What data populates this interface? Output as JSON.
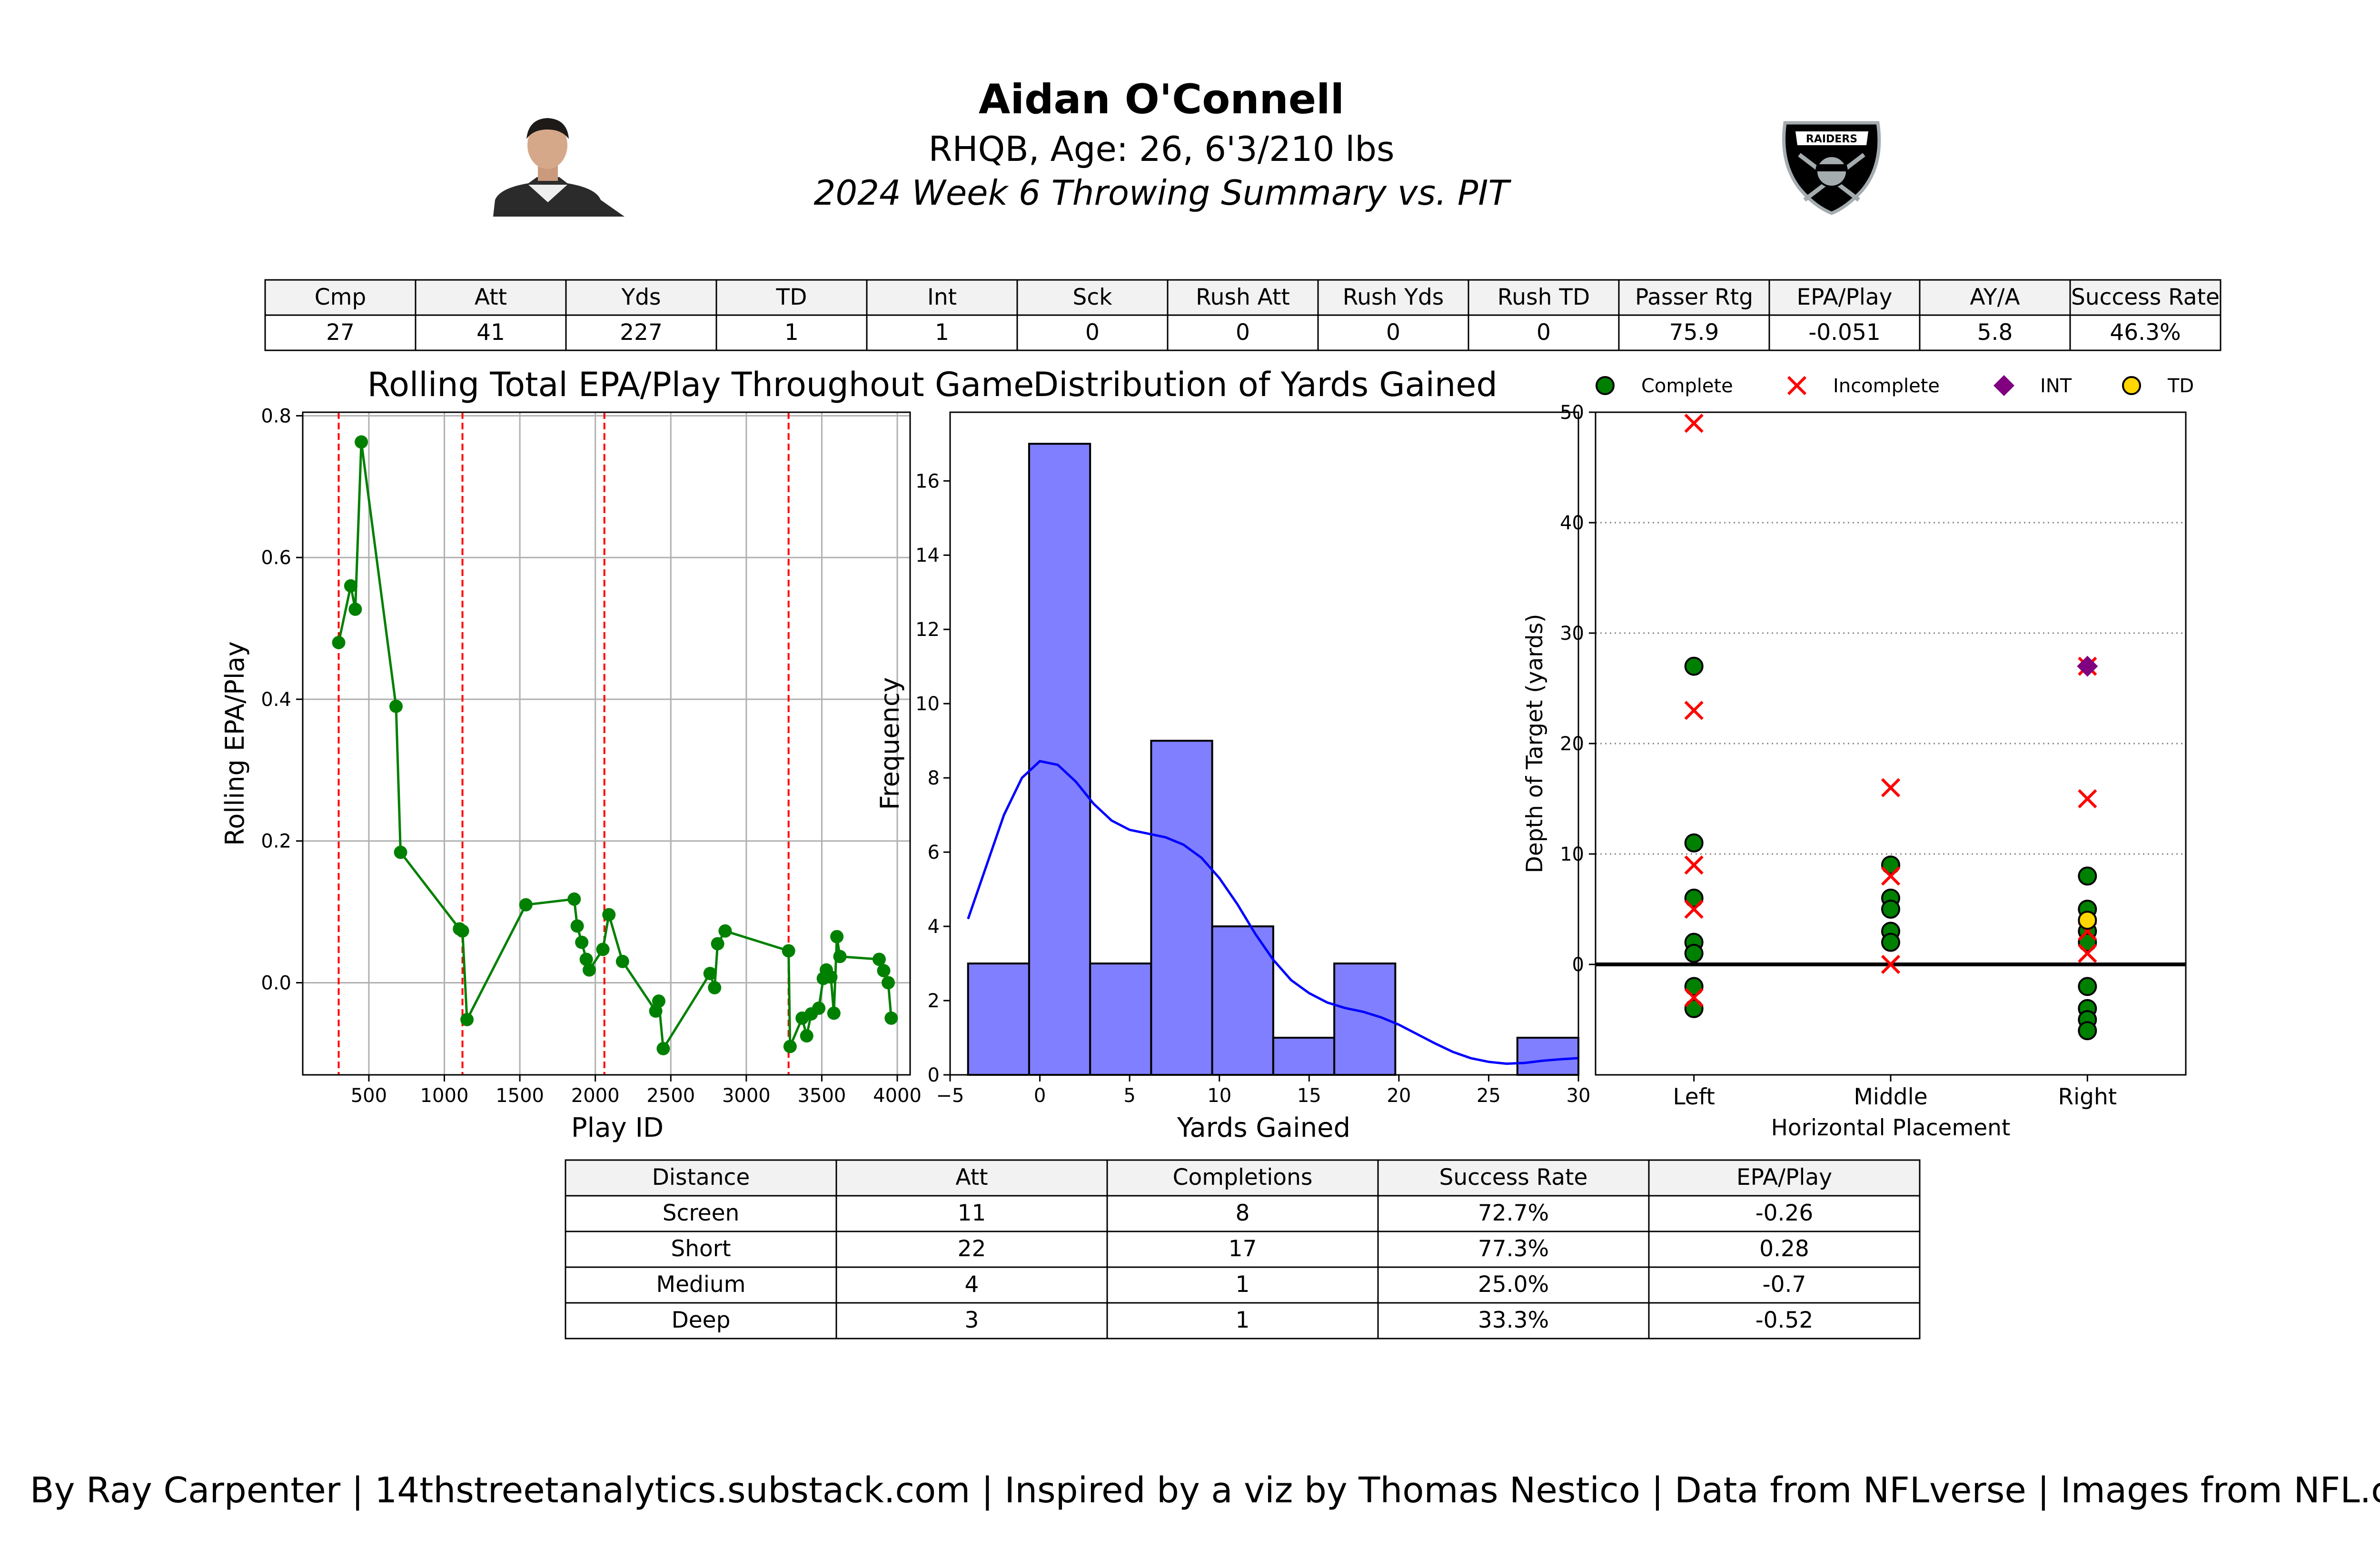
{
  "header": {
    "player_name": "Aidan O'Connell",
    "bio": "RHQB, Age: 26, 6'3/210 lbs",
    "summary_title": "2024 Week 6 Throwing Summary vs. PIT",
    "team_logo_text": "RAIDERS"
  },
  "stats_table": {
    "headers": [
      "Cmp",
      "Att",
      "Yds",
      "TD",
      "Int",
      "Sck",
      "Rush Att",
      "Rush Yds",
      "Rush TD",
      "Passer Rtg",
      "EPA/Play",
      "AY/A",
      "Success Rate"
    ],
    "values": [
      "27",
      "41",
      "227",
      "1",
      "1",
      "0",
      "0",
      "0",
      "0",
      "75.9",
      "-0.051",
      "5.8",
      "46.3%"
    ]
  },
  "distance_table": {
    "headers": [
      "Distance",
      "Att",
      "Completions",
      "Success Rate",
      "EPA/Play"
    ],
    "rows": [
      [
        "Screen",
        "11",
        "8",
        "72.7%",
        "-0.26"
      ],
      [
        "Short",
        "22",
        "17",
        "77.3%",
        "0.28"
      ],
      [
        "Medium",
        "4",
        "1",
        "25.0%",
        "-0.7"
      ],
      [
        "Deep",
        "3",
        "1",
        "33.3%",
        "-0.52"
      ]
    ]
  },
  "footer": {
    "credit": "By Ray Carpenter | 14thstreetanalytics.substack.com | Inspired by a viz by Thomas Nestico | Data from NFLverse | Images from NFL.com"
  },
  "colors": {
    "line": "#008000",
    "quarter_marker": "#ff0000",
    "histogram_fill": "#7f7fff",
    "kde_line": "#0000ff",
    "complete": "#008000",
    "incomplete": "#ff0000",
    "interception": "#800080",
    "touchdown": "#ffd700",
    "table_header_bg": "#f2f2f2"
  },
  "chart_data": [
    {
      "type": "line",
      "title": "Rolling Total EPA/Play Throughout Game",
      "xlabel": "Play ID",
      "ylabel": "Rolling EPA/Play",
      "xlim": [
        62,
        4085
      ],
      "ylim": [
        -0.13,
        0.805
      ],
      "xticks": [
        500,
        1000,
        1500,
        2000,
        2500,
        3000,
        3500,
        4000
      ],
      "yticks": [
        0.0,
        0.2,
        0.4,
        0.6,
        0.8
      ],
      "ytick_labels": [
        "0.0",
        "0.2",
        "0.4",
        "0.6",
        "0.8"
      ],
      "grid": true,
      "quarter_markers": [
        300,
        1120,
        2060,
        3280
      ],
      "points": [
        [
          300,
          0.48
        ],
        [
          380,
          0.56
        ],
        [
          410,
          0.527
        ],
        [
          450,
          0.763
        ],
        [
          680,
          0.39
        ],
        [
          710,
          0.184
        ],
        [
          1100,
          0.076
        ],
        [
          1120,
          0.073
        ],
        [
          1150,
          -0.052
        ],
        [
          1540,
          0.11
        ],
        [
          1860,
          0.118
        ],
        [
          1880,
          0.08
        ],
        [
          1910,
          0.057
        ],
        [
          1940,
          0.033
        ],
        [
          1960,
          0.018
        ],
        [
          2050,
          0.047
        ],
        [
          2090,
          0.096
        ],
        [
          2180,
          0.03
        ],
        [
          2400,
          -0.04
        ],
        [
          2420,
          -0.026
        ],
        [
          2450,
          -0.093
        ],
        [
          2760,
          0.013
        ],
        [
          2790,
          -0.007
        ],
        [
          2810,
          0.055
        ],
        [
          2860,
          0.073
        ],
        [
          3280,
          0.045
        ],
        [
          3290,
          -0.09
        ],
        [
          3370,
          -0.05
        ],
        [
          3400,
          -0.075
        ],
        [
          3430,
          -0.044
        ],
        [
          3480,
          -0.036
        ],
        [
          3510,
          0.006
        ],
        [
          3530,
          0.018
        ],
        [
          3560,
          0.008
        ],
        [
          3580,
          -0.043
        ],
        [
          3600,
          0.065
        ],
        [
          3620,
          0.037
        ],
        [
          3880,
          0.033
        ],
        [
          3910,
          0.017
        ],
        [
          3940,
          0.0
        ],
        [
          3960,
          -0.05
        ]
      ]
    },
    {
      "type": "bar",
      "title": "Distribution of Yards Gained",
      "xlabel": "Yards Gained",
      "ylabel": "Frequency",
      "xlim": [
        -5,
        30
      ],
      "ylim": [
        0,
        17.85
      ],
      "xticks": [
        -5,
        0,
        5,
        10,
        15,
        20,
        25,
        30
      ],
      "xtick_labels": [
        "−5",
        "0",
        "5",
        "10",
        "15",
        "20",
        "25",
        "30"
      ],
      "yticks": [
        0,
        2,
        4,
        6,
        8,
        10,
        12,
        14,
        16
      ],
      "bin_edges": [
        -4,
        -0.6,
        2.8,
        6.2,
        9.6,
        13.0,
        16.4,
        19.8,
        23.2,
        26.6,
        30
      ],
      "values": [
        3,
        17,
        3,
        9,
        4,
        1,
        3,
        0,
        0,
        1
      ],
      "kde": [
        [
          -4,
          4.2
        ],
        [
          -3,
          5.6
        ],
        [
          -2,
          7.0
        ],
        [
          -1,
          8.0
        ],
        [
          0,
          8.45
        ],
        [
          1,
          8.35
        ],
        [
          2,
          7.9
        ],
        [
          3,
          7.3
        ],
        [
          4,
          6.85
        ],
        [
          5,
          6.6
        ],
        [
          6,
          6.5
        ],
        [
          7,
          6.4
        ],
        [
          8,
          6.2
        ],
        [
          9,
          5.85
        ],
        [
          10,
          5.3
        ],
        [
          11,
          4.6
        ],
        [
          12,
          3.8
        ],
        [
          13,
          3.1
        ],
        [
          14,
          2.55
        ],
        [
          15,
          2.2
        ],
        [
          16,
          1.95
        ],
        [
          17,
          1.8
        ],
        [
          18,
          1.7
        ],
        [
          19,
          1.55
        ],
        [
          20,
          1.35
        ],
        [
          21,
          1.1
        ],
        [
          22,
          0.85
        ],
        [
          23,
          0.62
        ],
        [
          24,
          0.45
        ],
        [
          25,
          0.35
        ],
        [
          26,
          0.3
        ],
        [
          27,
          0.32
        ],
        [
          28,
          0.38
        ],
        [
          29,
          0.42
        ],
        [
          30,
          0.45
        ]
      ]
    },
    {
      "type": "scatter",
      "xlabel": "Horizontal Placement",
      "ylabel": "Depth of Target (yards)",
      "categories": [
        "Left",
        "Middle",
        "Right"
      ],
      "xlim": [
        -0.5,
        2.5
      ],
      "ylim": [
        -10,
        50
      ],
      "yticks": [
        0,
        10,
        20,
        30,
        40,
        50
      ],
      "legend": [
        "Complete",
        "Incomplete",
        "INT",
        "TD"
      ],
      "legend_placement": "top",
      "complete": [
        [
          0,
          27
        ],
        [
          0,
          11
        ],
        [
          0,
          6
        ],
        [
          0,
          2
        ],
        [
          0,
          1
        ],
        [
          0,
          -2
        ],
        [
          0,
          -4
        ],
        [
          1,
          9
        ],
        [
          1,
          6
        ],
        [
          1,
          5
        ],
        [
          1,
          3
        ],
        [
          1,
          2
        ],
        [
          2,
          8
        ],
        [
          2,
          5
        ],
        [
          2,
          3
        ],
        [
          2,
          2
        ],
        [
          2,
          -2
        ],
        [
          2,
          -4
        ],
        [
          2,
          -5
        ],
        [
          2,
          -6
        ]
      ],
      "incomplete": [
        [
          0,
          49
        ],
        [
          0,
          23
        ],
        [
          0,
          9
        ],
        [
          0,
          5
        ],
        [
          0,
          -3
        ],
        [
          1,
          16
        ],
        [
          1,
          8
        ],
        [
          1,
          0
        ],
        [
          2,
          27
        ],
        [
          2,
          15
        ],
        [
          2,
          3
        ],
        [
          2,
          1
        ]
      ],
      "interception": [
        [
          2,
          27
        ]
      ],
      "touchdown": [
        [
          2,
          4
        ]
      ]
    }
  ]
}
